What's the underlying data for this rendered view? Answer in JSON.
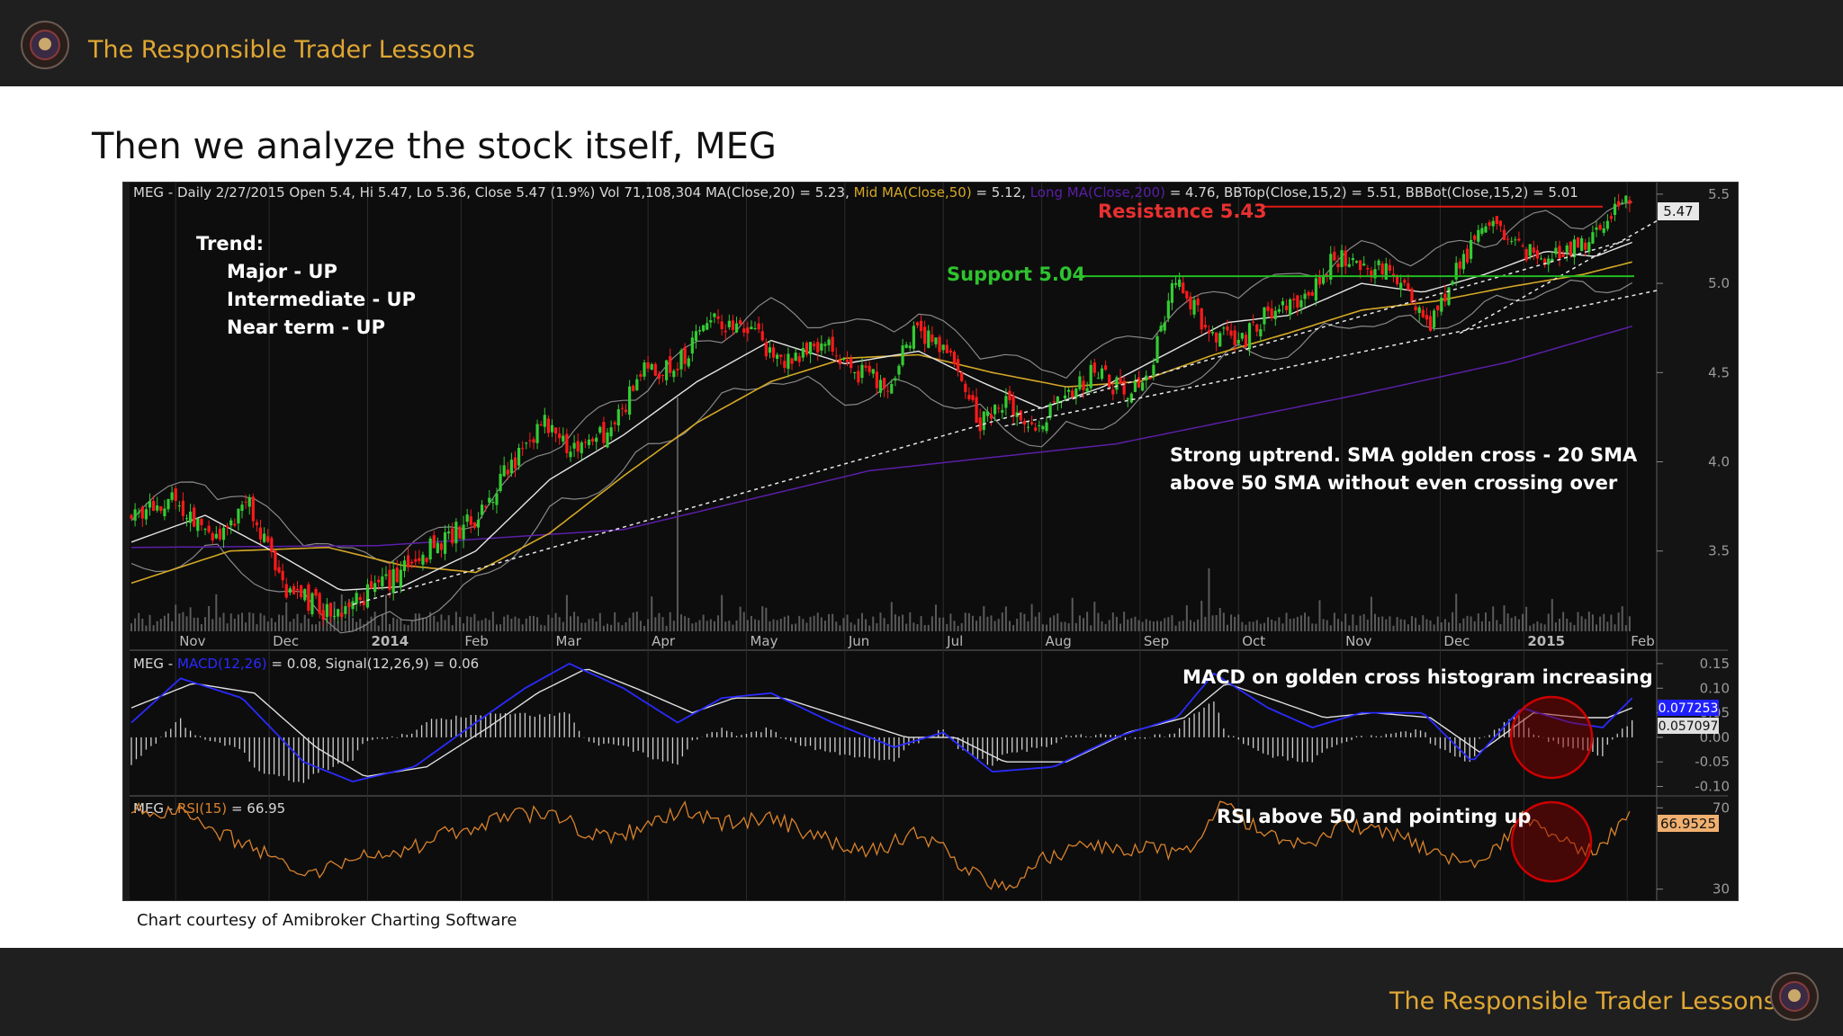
{
  "header": {
    "brand": "The Responsible Trader Lessons"
  },
  "slide": {
    "title": "Then we analyze the stock itself, MEG"
  },
  "footer": {
    "brand": "The Responsible Trader Lessons",
    "credit": "Chart courtesy of Amibroker Charting Software"
  },
  "colors": {
    "background": "#0d0d0d",
    "bull": "#33cc33",
    "bear": "#ff1a1a",
    "brand": "#e0a733",
    "ma20": "#e6e6e6",
    "ma50": "#d4a826",
    "ma200": "#5b1fa8",
    "macd": "#2a2aff",
    "rsi": "#d9822b"
  },
  "chart_data": [
    {
      "type": "candlestick",
      "header": {
        "p1": "MEG - Daily 2/27/2015 Open 5.4, Hi 5.47, Lo 5.36, Close 5.47 (1.9%) Vol 71,108,304 MA(Close,20) = 5.23,",
        "p2": "Mid MA(Close,50)",
        "p3": " = 5.12, ",
        "p4": "Long MA(Close,200)",
        "p5": " = 4.76, BBTop(Close,15,2) = 5.51, BBBot(Close,15,2) = 5.01"
      },
      "y_ticks": [
        "5.5",
        "5.0",
        "4.5",
        "4.0",
        "3.5"
      ],
      "ylim": [
        3.05,
        5.57
      ],
      "last_price_label": "5.47",
      "x_labels": [
        "Nov",
        "Dec",
        "2014",
        "Feb",
        "Mar",
        "Apr",
        "May",
        "Jun",
        "Jul",
        "Aug",
        "Sep",
        "Oct",
        "Nov",
        "Dec",
        "2015",
        "Feb"
      ],
      "close_path": [
        {
          "d": 0,
          "v": 3.72
        },
        {
          "d": 18,
          "v": 3.8
        },
        {
          "d": 34,
          "v": 3.55
        },
        {
          "d": 48,
          "v": 3.75
        },
        {
          "d": 62,
          "v": 3.3
        },
        {
          "d": 80,
          "v": 3.15
        },
        {
          "d": 95,
          "v": 3.25
        },
        {
          "d": 110,
          "v": 3.38
        },
        {
          "d": 125,
          "v": 3.55
        },
        {
          "d": 140,
          "v": 3.68
        },
        {
          "d": 155,
          "v": 4.0
        },
        {
          "d": 168,
          "v": 4.25
        },
        {
          "d": 178,
          "v": 4.05
        },
        {
          "d": 195,
          "v": 4.18
        },
        {
          "d": 208,
          "v": 4.5
        },
        {
          "d": 222,
          "v": 4.55
        },
        {
          "d": 235,
          "v": 4.8
        },
        {
          "d": 250,
          "v": 4.75
        },
        {
          "d": 265,
          "v": 4.55
        },
        {
          "d": 280,
          "v": 4.68
        },
        {
          "d": 295,
          "v": 4.5
        },
        {
          "d": 308,
          "v": 4.45
        },
        {
          "d": 318,
          "v": 4.75
        },
        {
          "d": 332,
          "v": 4.6
        },
        {
          "d": 345,
          "v": 4.2
        },
        {
          "d": 355,
          "v": 4.35
        },
        {
          "d": 368,
          "v": 4.2
        },
        {
          "d": 380,
          "v": 4.4
        },
        {
          "d": 392,
          "v": 4.5
        },
        {
          "d": 405,
          "v": 4.38
        },
        {
          "d": 413,
          "v": 4.45
        },
        {
          "d": 425,
          "v": 5.05
        },
        {
          "d": 437,
          "v": 4.75
        },
        {
          "d": 450,
          "v": 4.65
        },
        {
          "d": 462,
          "v": 4.85
        },
        {
          "d": 475,
          "v": 4.9
        },
        {
          "d": 490,
          "v": 5.15
        },
        {
          "d": 502,
          "v": 5.1
        },
        {
          "d": 515,
          "v": 5.05
        },
        {
          "d": 527,
          "v": 4.75
        },
        {
          "d": 540,
          "v": 5.1
        },
        {
          "d": 552,
          "v": 5.38
        },
        {
          "d": 564,
          "v": 5.2
        },
        {
          "d": 576,
          "v": 5.15
        },
        {
          "d": 588,
          "v": 5.2
        },
        {
          "d": 598,
          "v": 5.35
        },
        {
          "d": 610,
          "v": 5.47
        }
      ],
      "ma20_path": [
        {
          "d": 0,
          "v": 3.55
        },
        {
          "d": 30,
          "v": 3.7
        },
        {
          "d": 60,
          "v": 3.48
        },
        {
          "d": 85,
          "v": 3.28
        },
        {
          "d": 110,
          "v": 3.3
        },
        {
          "d": 140,
          "v": 3.5
        },
        {
          "d": 170,
          "v": 3.9
        },
        {
          "d": 200,
          "v": 4.15
        },
        {
          "d": 230,
          "v": 4.45
        },
        {
          "d": 260,
          "v": 4.68
        },
        {
          "d": 290,
          "v": 4.55
        },
        {
          "d": 320,
          "v": 4.62
        },
        {
          "d": 345,
          "v": 4.45
        },
        {
          "d": 370,
          "v": 4.3
        },
        {
          "d": 395,
          "v": 4.42
        },
        {
          "d": 420,
          "v": 4.6
        },
        {
          "d": 445,
          "v": 4.78
        },
        {
          "d": 470,
          "v": 4.82
        },
        {
          "d": 500,
          "v": 5.0
        },
        {
          "d": 525,
          "v": 4.95
        },
        {
          "d": 550,
          "v": 5.05
        },
        {
          "d": 575,
          "v": 5.18
        },
        {
          "d": 595,
          "v": 5.15
        },
        {
          "d": 610,
          "v": 5.23
        }
      ],
      "ma50_path": [
        {
          "d": 0,
          "v": 3.32
        },
        {
          "d": 40,
          "v": 3.5
        },
        {
          "d": 80,
          "v": 3.52
        },
        {
          "d": 110,
          "v": 3.42
        },
        {
          "d": 140,
          "v": 3.38
        },
        {
          "d": 170,
          "v": 3.6
        },
        {
          "d": 200,
          "v": 3.92
        },
        {
          "d": 230,
          "v": 4.22
        },
        {
          "d": 260,
          "v": 4.45
        },
        {
          "d": 290,
          "v": 4.58
        },
        {
          "d": 320,
          "v": 4.6
        },
        {
          "d": 350,
          "v": 4.5
        },
        {
          "d": 380,
          "v": 4.42
        },
        {
          "d": 410,
          "v": 4.45
        },
        {
          "d": 440,
          "v": 4.6
        },
        {
          "d": 470,
          "v": 4.72
        },
        {
          "d": 500,
          "v": 4.85
        },
        {
          "d": 530,
          "v": 4.9
        },
        {
          "d": 560,
          "v": 4.98
        },
        {
          "d": 590,
          "v": 5.05
        },
        {
          "d": 610,
          "v": 5.12
        }
      ],
      "ma200_path": [
        {
          "d": 0,
          "v": 3.52
        },
        {
          "d": 100,
          "v": 3.53
        },
        {
          "d": 200,
          "v": 3.62
        },
        {
          "d": 300,
          "v": 3.95
        },
        {
          "d": 400,
          "v": 4.1
        },
        {
          "d": 500,
          "v": 4.38
        },
        {
          "d": 560,
          "v": 4.56
        },
        {
          "d": 610,
          "v": 4.76
        }
      ],
      "trendline1": [
        {
          "d": 90,
          "v": 3.2
        },
        {
          "d": 610,
          "v": 5.25
        }
      ],
      "trendline2": [
        {
          "d": 355,
          "v": 4.2
        },
        {
          "d": 620,
          "v": 4.96
        }
      ],
      "trendline3": [
        {
          "d": 540,
          "v": 4.72
        },
        {
          "d": 620,
          "v": 5.35
        }
      ],
      "support": 5.04,
      "resistance": 5.43,
      "annotations": {
        "trend_title": "Trend:",
        "trend_major": "Major - UP",
        "trend_intermediate": "Intermediate  - UP",
        "trend_near": "Near term - UP",
        "resistance": "Resistance 5.43",
        "support": "Support 5.04",
        "uptrend_line1": "Strong uptrend.  SMA golden cross - 20 SMA",
        "uptrend_line2": "above 50 SMA without even crossing over"
      }
    },
    {
      "type": "line",
      "header": {
        "p1": "MEG - ",
        "p2": "MACD(12,26)",
        "p3": " = 0.08, Signal(12,26,9) = 0.06"
      },
      "y_ticks": [
        "0.15",
        "0.10",
        "0.05",
        "0.00",
        "-0.05",
        "-0.10"
      ],
      "ylim": [
        -0.11,
        0.17
      ],
      "macd_label": "0.077253",
      "signal_label": "0.057097",
      "annotation": "MACD on golden cross histogram increasing",
      "macd_path": [
        {
          "d": 0,
          "v": 0.03
        },
        {
          "d": 20,
          "v": 0.12
        },
        {
          "d": 45,
          "v": 0.08
        },
        {
          "d": 70,
          "v": -0.05
        },
        {
          "d": 90,
          "v": -0.09
        },
        {
          "d": 115,
          "v": -0.06
        },
        {
          "d": 140,
          "v": 0.03
        },
        {
          "d": 160,
          "v": 0.1
        },
        {
          "d": 178,
          "v": 0.15
        },
        {
          "d": 200,
          "v": 0.1
        },
        {
          "d": 222,
          "v": 0.03
        },
        {
          "d": 240,
          "v": 0.08
        },
        {
          "d": 260,
          "v": 0.09
        },
        {
          "d": 285,
          "v": 0.03
        },
        {
          "d": 310,
          "v": -0.02
        },
        {
          "d": 330,
          "v": 0.01
        },
        {
          "d": 350,
          "v": -0.07
        },
        {
          "d": 375,
          "v": -0.06
        },
        {
          "d": 400,
          "v": 0.0
        },
        {
          "d": 425,
          "v": 0.04
        },
        {
          "d": 440,
          "v": 0.13
        },
        {
          "d": 462,
          "v": 0.06
        },
        {
          "d": 480,
          "v": 0.02
        },
        {
          "d": 500,
          "v": 0.05
        },
        {
          "d": 525,
          "v": 0.05
        },
        {
          "d": 545,
          "v": -0.05
        },
        {
          "d": 565,
          "v": 0.06
        },
        {
          "d": 585,
          "v": 0.03
        },
        {
          "d": 598,
          "v": 0.02
        },
        {
          "d": 610,
          "v": 0.08
        }
      ],
      "signal_path": [
        {
          "d": 0,
          "v": 0.06
        },
        {
          "d": 25,
          "v": 0.11
        },
        {
          "d": 50,
          "v": 0.09
        },
        {
          "d": 75,
          "v": -0.02
        },
        {
          "d": 95,
          "v": -0.08
        },
        {
          "d": 120,
          "v": -0.06
        },
        {
          "d": 145,
          "v": 0.02
        },
        {
          "d": 165,
          "v": 0.09
        },
        {
          "d": 185,
          "v": 0.14
        },
        {
          "d": 205,
          "v": 0.1
        },
        {
          "d": 228,
          "v": 0.05
        },
        {
          "d": 245,
          "v": 0.08
        },
        {
          "d": 265,
          "v": 0.08
        },
        {
          "d": 290,
          "v": 0.04
        },
        {
          "d": 315,
          "v": 0.0
        },
        {
          "d": 335,
          "v": 0.0
        },
        {
          "d": 355,
          "v": -0.05
        },
        {
          "d": 380,
          "v": -0.05
        },
        {
          "d": 405,
          "v": 0.01
        },
        {
          "d": 428,
          "v": 0.04
        },
        {
          "d": 445,
          "v": 0.11
        },
        {
          "d": 468,
          "v": 0.07
        },
        {
          "d": 485,
          "v": 0.04
        },
        {
          "d": 505,
          "v": 0.05
        },
        {
          "d": 528,
          "v": 0.04
        },
        {
          "d": 548,
          "v": -0.03
        },
        {
          "d": 570,
          "v": 0.05
        },
        {
          "d": 590,
          "v": 0.04
        },
        {
          "d": 600,
          "v": 0.04
        },
        {
          "d": 610,
          "v": 0.06
        }
      ]
    },
    {
      "type": "line",
      "header": {
        "p1": "MEG - ",
        "p2": "RSI(15)",
        "p3": " = 66.95"
      },
      "y_ticks": [
        "70",
        "30"
      ],
      "ylim": [
        25,
        75
      ],
      "rsi_label": "66.9525",
      "annotation": "RSI above 50 and pointing up",
      "rsi_path": [
        {
          "d": 0,
          "v": 70
        },
        {
          "d": 20,
          "v": 68
        },
        {
          "d": 40,
          "v": 55
        },
        {
          "d": 60,
          "v": 45
        },
        {
          "d": 75,
          "v": 38
        },
        {
          "d": 90,
          "v": 45
        },
        {
          "d": 110,
          "v": 48
        },
        {
          "d": 130,
          "v": 58
        },
        {
          "d": 150,
          "v": 65
        },
        {
          "d": 170,
          "v": 68
        },
        {
          "d": 190,
          "v": 55
        },
        {
          "d": 210,
          "v": 60
        },
        {
          "d": 225,
          "v": 70
        },
        {
          "d": 240,
          "v": 62
        },
        {
          "d": 260,
          "v": 65
        },
        {
          "d": 280,
          "v": 55
        },
        {
          "d": 300,
          "v": 48
        },
        {
          "d": 320,
          "v": 58
        },
        {
          "d": 340,
          "v": 40
        },
        {
          "d": 355,
          "v": 30
        },
        {
          "d": 370,
          "v": 45
        },
        {
          "d": 390,
          "v": 52
        },
        {
          "d": 410,
          "v": 50
        },
        {
          "d": 430,
          "v": 48
        },
        {
          "d": 442,
          "v": 72
        },
        {
          "d": 460,
          "v": 58
        },
        {
          "d": 478,
          "v": 52
        },
        {
          "d": 495,
          "v": 62
        },
        {
          "d": 515,
          "v": 56
        },
        {
          "d": 530,
          "v": 48
        },
        {
          "d": 548,
          "v": 40
        },
        {
          "d": 565,
          "v": 65
        },
        {
          "d": 580,
          "v": 55
        },
        {
          "d": 595,
          "v": 48
        },
        {
          "d": 610,
          "v": 66.95
        }
      ]
    }
  ]
}
